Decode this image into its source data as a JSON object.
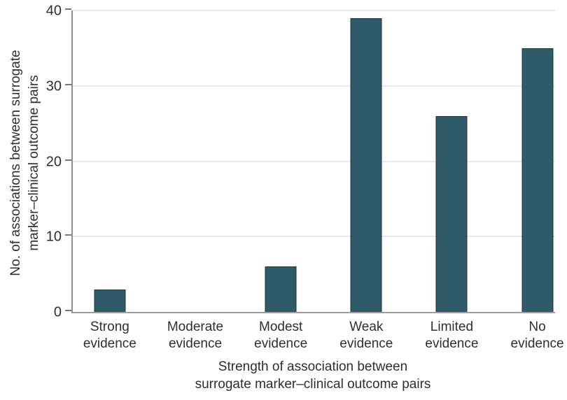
{
  "chart_data": {
    "type": "bar",
    "categories": [
      "Strong evidence",
      "Moderate evidence",
      "Modest evidence",
      "Weak evidence",
      "Limited evidence",
      "No evidence"
    ],
    "values": [
      3,
      0,
      6,
      39,
      26,
      35
    ],
    "title": "",
    "xlabel": "Strength of association between surrogate marker–clinical outcome pairs",
    "xlabel_lines": [
      "Strength of association between",
      "surrogate marker–clinical outcome pairs"
    ],
    "ylabel": "No. of associations between surrogate marker–clinical outcome pairs",
    "ylabel_lines": [
      "No. of associations between surrogate",
      "marker–clinical outcome pairs"
    ],
    "ylim": [
      0,
      40
    ],
    "yticks": [
      0,
      10,
      20,
      30,
      40
    ],
    "grid": "horizontal-at-ticks",
    "legend": "none",
    "bar_color": "#2f5a68",
    "bar_border_color": "#22333b",
    "gridline_color": "#e9e9e9",
    "axis_color": "#8e8e93",
    "text_color": "#2e2e2e"
  }
}
